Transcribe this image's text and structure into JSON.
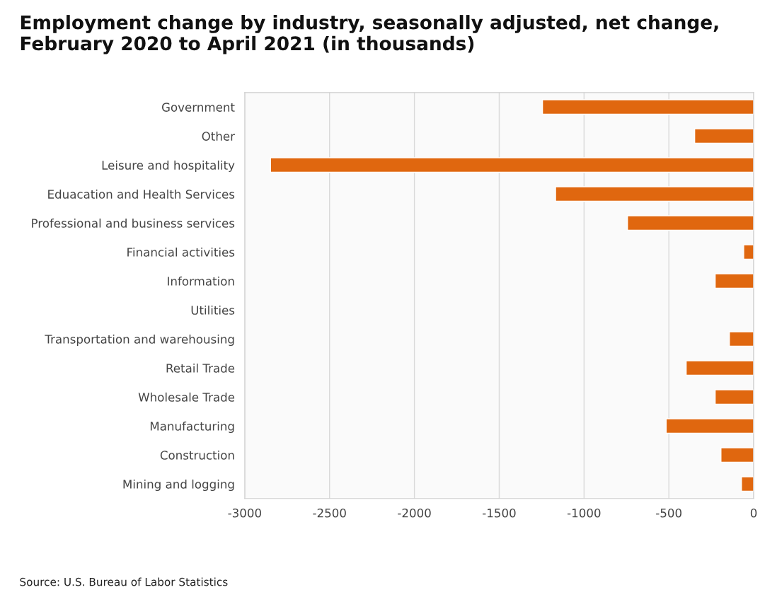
{
  "chart_data": {
    "type": "bar",
    "orientation": "horizontal",
    "title": "Employment change by industry, seasonally adjusted, net change,\nFebruary 2020 to April 2021 (in thousands)",
    "categories": [
      "Government",
      "Other",
      "Leisure and hospitality",
      "Eduacation and Health Services",
      "Professional and business services",
      "Financial activities",
      "Information",
      "Utilities",
      "Transportation and warehousing",
      "Retail Trade",
      "Wholesale Trade",
      "Manufacturing",
      "Construction",
      "Mining and logging"
    ],
    "values": [
      -1245,
      -348,
      -2848,
      -1168,
      -744,
      -59,
      -227,
      null,
      -143,
      -398,
      -227,
      -516,
      -193,
      -72
    ],
    "color": "#e0670f",
    "xlim": [
      -3000,
      0
    ],
    "xticks": [
      -3000,
      -2500,
      -2000,
      -1500,
      -1000,
      -500,
      0
    ],
    "grid": "x",
    "annotations": [
      "Source: U.S. Bureau of Labor Statistics"
    ]
  }
}
